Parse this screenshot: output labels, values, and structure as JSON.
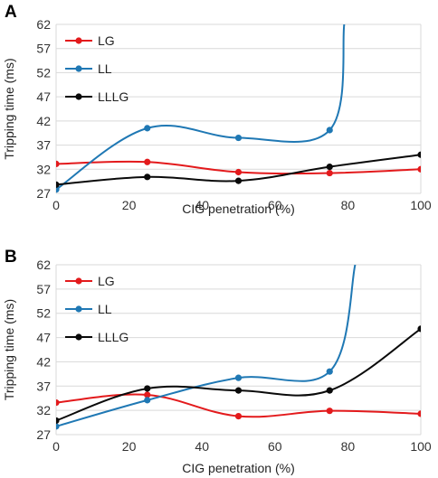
{
  "chart_data": [
    {
      "panel": "A",
      "type": "line",
      "xlabel": "CIG  penetration (%)",
      "ylabel": "Tripping time (ms)",
      "xlim": [
        0,
        100
      ],
      "ylim": [
        27,
        62
      ],
      "xticks": [
        0,
        20,
        40,
        60,
        80,
        100
      ],
      "yticks": [
        27,
        32,
        37,
        42,
        47,
        52,
        57,
        62
      ],
      "grid": "horizontal",
      "legend": "top-left",
      "series": [
        {
          "name": "LG",
          "color": "#e31a1c",
          "x": [
            0,
            25,
            50,
            75,
            100
          ],
          "y": [
            33.1,
            33.5,
            31.4,
            31.2,
            32.0
          ]
        },
        {
          "name": "LL",
          "color": "#1f78b4",
          "x": [
            0,
            25,
            50,
            75,
            79
          ],
          "y": [
            27.8,
            40.5,
            38.5,
            40.1,
            62
          ]
        },
        {
          "name": "LLLG",
          "color": "#0a0a0a",
          "x": [
            0,
            25,
            50,
            75,
            100
          ],
          "y": [
            28.8,
            30.4,
            29.6,
            32.5,
            35.0
          ]
        }
      ]
    },
    {
      "panel": "B",
      "type": "line",
      "xlabel": "CIG  penetration (%)",
      "ylabel": "Tripping time (ms)",
      "xlim": [
        0,
        100
      ],
      "ylim": [
        27,
        62
      ],
      "xticks": [
        0,
        20,
        40,
        60,
        80,
        100
      ],
      "yticks": [
        27,
        32,
        37,
        42,
        47,
        52,
        57,
        62
      ],
      "grid": "horizontal",
      "legend": "top-left",
      "series": [
        {
          "name": "LG",
          "color": "#e31a1c",
          "x": [
            0,
            25,
            50,
            75,
            100
          ],
          "y": [
            33.6,
            35.2,
            30.8,
            31.9,
            31.3
          ]
        },
        {
          "name": "LL",
          "color": "#1f78b4",
          "x": [
            0,
            25,
            50,
            75,
            82
          ],
          "y": [
            28.7,
            34.1,
            38.7,
            40.0,
            62
          ]
        },
        {
          "name": "LLLG",
          "color": "#0a0a0a",
          "x": [
            0,
            25,
            50,
            75,
            100
          ],
          "y": [
            29.9,
            36.5,
            36.1,
            36.1,
            48.8
          ]
        }
      ]
    }
  ]
}
